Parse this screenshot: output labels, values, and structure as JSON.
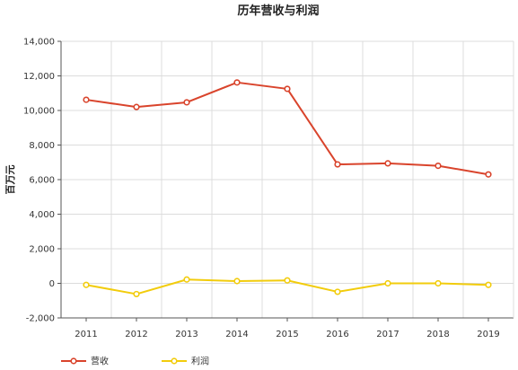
{
  "chart_data": {
    "type": "line",
    "title": "历年营收与利润",
    "ylabel": "百万元",
    "xlabel": "",
    "categories": [
      "2011",
      "2012",
      "2013",
      "2014",
      "2015",
      "2016",
      "2017",
      "2018",
      "2019"
    ],
    "yticks": [
      "-2,000",
      "0",
      "2,000",
      "4,000",
      "6,000",
      "8,000",
      "10,000",
      "12,000",
      "14,000"
    ],
    "ytick_values": [
      -2000,
      0,
      2000,
      4000,
      6000,
      8000,
      10000,
      12000,
      14000
    ],
    "ylim": [
      -2000,
      14000
    ],
    "grid": true,
    "legend": "bottom-left",
    "series": [
      {
        "name": "营收",
        "color": "#d9442c",
        "values": [
          10620,
          10200,
          10470,
          11620,
          11250,
          6880,
          6940,
          6800,
          6300
        ]
      },
      {
        "name": "利润",
        "color": "#f2cc0c",
        "values": [
          -90,
          -620,
          220,
          130,
          170,
          -490,
          0,
          0,
          -90
        ]
      }
    ]
  }
}
